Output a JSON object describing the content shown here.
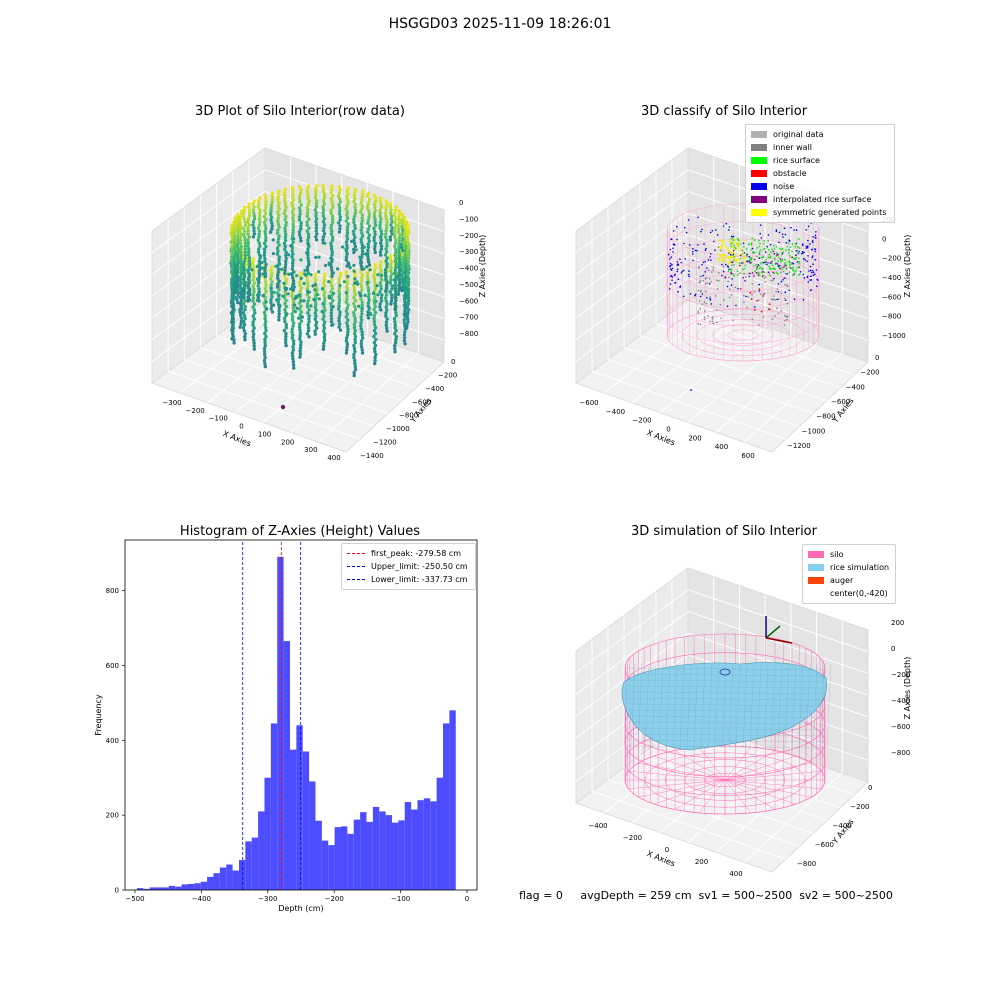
{
  "suptitle": "HSGGD03 2025-11-09 18:26:01",
  "footer": "flag = 0     avgDepth = 259 cm  sv1 = 500~2500  sv2 = 500~2500",
  "chart_data": [
    {
      "type": "scatter",
      "title": "3D Plot of Silo Interior(row data)",
      "xlabel": "X Axies",
      "ylabel": "Y Axies",
      "zlabel": "Z Axies (Depth)",
      "x_ticks": [
        "−300",
        "−200",
        "−100",
        "0",
        "100",
        "200",
        "300",
        "400"
      ],
      "y_ticks": [
        "0",
        "−200",
        "−400",
        "−600",
        "−800",
        "−1000",
        "−1200",
        "−1400"
      ],
      "z_ticks": [
        "0",
        "−100",
        "−200",
        "−300",
        "−400",
        "−500",
        "−600",
        "−700",
        "−800"
      ],
      "colormap": "viridis",
      "colors": {
        "low": "#2c9a8c",
        "mid": "#3bb67e",
        "high": "#e0e41c"
      }
    },
    {
      "type": "scatter",
      "title": "3D classify of Silo Interior",
      "xlabel": "X Axies",
      "ylabel": "Y Axies",
      "zlabel": "Z Axies (Depth)",
      "x_ticks": [
        "−600",
        "−400",
        "−200",
        "0",
        "200",
        "400",
        "600"
      ],
      "y_ticks": [
        "0",
        "−200",
        "−400",
        "−600",
        "−800",
        "−1000",
        "−1200"
      ],
      "z_ticks": [
        "200",
        "0",
        "−200",
        "−400",
        "−600",
        "−800",
        "−1000"
      ],
      "legend": [
        {
          "label": "original data",
          "color": "#b0b0b0"
        },
        {
          "label": "inner wall",
          "color": "#808080"
        },
        {
          "label": "rice surface",
          "color": "#00ff00"
        },
        {
          "label": "obstacle",
          "color": "#ff0000"
        },
        {
          "label": "noise",
          "color": "#0000ee"
        },
        {
          "label": "interpolated rice surface",
          "color": "#800080"
        },
        {
          "label": "symmetric generated points",
          "color": "#ffff00"
        }
      ]
    },
    {
      "type": "bar",
      "title": "Histogram of Z-Axies (Height) Values",
      "xlabel": "Depth (cm)",
      "ylabel": "Frequency",
      "xlim": [
        -515,
        15
      ],
      "ylim": [
        0,
        935
      ],
      "x_ticks": [
        -500,
        -400,
        -300,
        -200,
        -100,
        0
      ],
      "x_tick_labels": [
        "−500",
        "−400",
        "−300",
        "−200",
        "−100",
        "0"
      ],
      "y_ticks": [
        0,
        200,
        400,
        600,
        800
      ],
      "y_tick_labels": [
        "0",
        "200",
        "400",
        "600",
        "800"
      ],
      "bar_color": "#4d4dff",
      "bin_width": 9.6,
      "bin_starts": [
        -497,
        -487.4,
        -477.8,
        -468.2,
        -458.6,
        -449,
        -439.4,
        -429.8,
        -420.2,
        -410.6,
        -401,
        -391.4,
        -381.8,
        -372.2,
        -362.6,
        -353,
        -343.4,
        -333.8,
        -324.2,
        -314.6,
        -305,
        -295.4,
        -285.8,
        -276.2,
        -266.6,
        -257,
        -247.4,
        -237.8,
        -228.2,
        -218.6,
        -209,
        -199.4,
        -189.8,
        -180.2,
        -170.6,
        -161,
        -151.4,
        -141.8,
        -132.2,
        -122.6,
        -113,
        -103.4,
        -93.8,
        -84.2,
        -74.6,
        -65,
        -55.4,
        -45.8,
        -36.2,
        -26.6,
        -17
      ],
      "values": [
        5,
        3,
        7,
        7,
        7,
        11,
        9,
        15,
        16,
        18,
        22,
        35,
        45,
        60,
        68,
        52,
        80,
        130,
        140,
        210,
        300,
        445,
        890,
        665,
        375,
        440,
        370,
        290,
        185,
        132,
        120,
        168,
        170,
        150,
        188,
        208,
        182,
        222,
        210,
        200,
        180,
        186,
        235,
        215,
        240,
        245,
        237,
        300,
        445,
        480,
        0
      ],
      "annotations": [
        {
          "label": "first_peak: -279.58 cm",
          "x": -279.58,
          "color": "#ff0000"
        },
        {
          "label": "Upper_limit: -250.50 cm",
          "x": -250.5,
          "color": "#0000cc"
        },
        {
          "label": "Lower_limit: -337.73 cm",
          "x": -337.73,
          "color": "#0000cc"
        }
      ]
    },
    {
      "type": "other",
      "title": "3D simulation of Silo Interior",
      "xlabel": "X Axies",
      "ylabel": "Y Axies",
      "zlabel": "Z Axies (Depth)",
      "x_ticks": [
        "−400",
        "−200",
        "0",
        "200",
        "400"
      ],
      "y_ticks": [
        "0",
        "−200",
        "−400",
        "−600",
        "−800"
      ],
      "z_ticks": [
        "200",
        "0",
        "−200",
        "−400",
        "−600",
        "−800"
      ],
      "legend": [
        {
          "label": "silo",
          "color": "#ff69b4"
        },
        {
          "label": "rice simulation",
          "color": "#87ceeb"
        },
        {
          "label": "auger",
          "color": "#ff4500"
        },
        {
          "label": "center(0,-420)",
          "color": ""
        }
      ]
    }
  ]
}
